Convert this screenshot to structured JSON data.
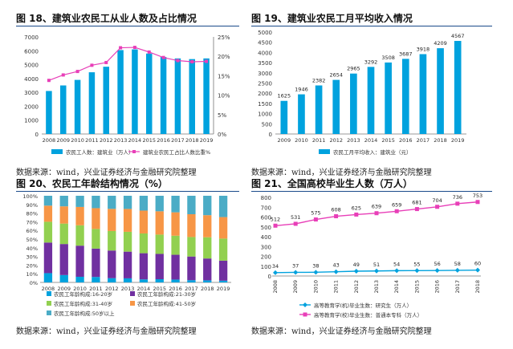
{
  "colors": {
    "blue": "#00A2DE",
    "magenta": "#E83FB8",
    "purple": "#7030A0",
    "green": "#92D050",
    "orange": "#F79646",
    "red": "#C0392B",
    "sky": "#4BACC6",
    "rule": "#1A4A8A"
  },
  "charts": [
    {
      "title": "图 18、建筑业农民工从业人数及占比情况",
      "source": "数据来源：wind，兴业证券经济与金融研究院整理",
      "chart_data": {
        "type": "bar+line",
        "categories": [
          "2008",
          "2009",
          "2010",
          "2011",
          "2012",
          "2013",
          "2014",
          "2015",
          "2016",
          "2017",
          "2018",
          "2019"
        ],
        "series": [
          {
            "name": "农民工人数：建筑业（万人）",
            "kind": "bar",
            "axis": "left",
            "values": [
              3100,
              3500,
              3900,
              4450,
              4850,
              6050,
              6100,
              5800,
              5550,
              5450,
              5400,
              5450
            ]
          },
          {
            "name": "建筑业农民工占比人数比重%",
            "kind": "line",
            "axis": "right",
            "values": [
              13.8,
              15.2,
              16.1,
              17.7,
              18.4,
              22.2,
              22.3,
              21.1,
              19.7,
              18.9,
              18.6,
              18.7
            ]
          }
        ],
        "left_ticks": [
          "0",
          "1000",
          "2000",
          "3000",
          "4000",
          "5000",
          "6000",
          "7000"
        ],
        "right_ticks": [
          "0%",
          "5%",
          "10%",
          "15%",
          "20%",
          "25%"
        ],
        "ylim": [
          0,
          7000
        ],
        "y2lim": [
          0,
          25
        ]
      }
    },
    {
      "title": "图 19、建筑业农民工月平均收入情况",
      "source": "数据来源：wind，兴业证券经济与金融研究院整理",
      "chart_data": {
        "type": "bar",
        "categories": [
          "2009",
          "2010",
          "2011",
          "2012",
          "2013",
          "2014",
          "2015",
          "2016",
          "2017",
          "2018",
          "2019"
        ],
        "values": [
          1625,
          1946,
          2382,
          2654,
          2965,
          3292,
          3508,
          3687,
          3918,
          4209,
          4567
        ],
        "data_labels": [
          "1625",
          "1946",
          "2382",
          "2654",
          "2965",
          "3292",
          "3508",
          "3687",
          "3918",
          "4209",
          "4567"
        ],
        "series_name": "农民工月平均收入：建筑业（元）",
        "left_ticks": [
          "0",
          "500",
          "1000",
          "1500",
          "2000",
          "2500",
          "3000",
          "3500",
          "4000",
          "4500",
          "5000"
        ],
        "ylim": [
          0,
          5000
        ]
      }
    },
    {
      "title": "图 20、农民工年龄结构情况（%）",
      "source": "数据来源：wind，兴业证券经济与金融研究院整理",
      "chart_data": {
        "type": "stacked-bar",
        "categories": [
          "2008",
          "2009",
          "2010",
          "2011",
          "2012",
          "2013",
          "2014",
          "2015",
          "2016",
          "2017",
          "2018",
          "2019"
        ],
        "series": [
          {
            "name": "农民工年龄构成:16-20岁",
            "values": [
              10.7,
              8.5,
              6.5,
              6.3,
              4.9,
              4.7,
              3.5,
              3.7,
              3.3,
              2.6,
              2.4,
              2.0
            ]
          },
          {
            "name": "农民工年龄构成:21-30岁",
            "values": [
              35.3,
              35.8,
              35.9,
              32.7,
              31.9,
              30.8,
              30.2,
              29.2,
              28.6,
              27.3,
              25.2,
              23.1
            ]
          },
          {
            "name": "农民工年龄构成:31-40岁",
            "values": [
              24.0,
              23.6,
              23.5,
              22.7,
              22.5,
              22.9,
              22.8,
              22.3,
              22.0,
              22.5,
              24.5,
              25.5
            ]
          },
          {
            "name": "农民工年龄构成:41-50岁",
            "values": [
              18.6,
              19.9,
              21.2,
              24.0,
              25.6,
              26.4,
              26.4,
              26.9,
              27.0,
              26.3,
              25.5,
              24.8
            ]
          },
          {
            "name": "农民工年龄构成:50岁以上",
            "values": [
              11.4,
              12.2,
              12.9,
              14.3,
              15.1,
              15.2,
              17.1,
              17.9,
              19.1,
              21.3,
              22.4,
              24.6
            ]
          }
        ],
        "left_ticks": [
          "0%",
          "10%",
          "20%",
          "30%",
          "40%",
          "50%",
          "60%",
          "70%",
          "80%",
          "90%",
          "100%"
        ],
        "ylim": [
          0,
          100
        ]
      }
    },
    {
      "title": "图 21、全国高校毕业生人数（万人）",
      "source": "数据来源：wind，兴业证券经济与金融研究院整理",
      "chart_data": {
        "type": "line",
        "categories": [
          "2008",
          "2009",
          "2010",
          "2011",
          "2012",
          "2013",
          "2014",
          "2015",
          "2016",
          "2017",
          "2018"
        ],
        "series": [
          {
            "name": "高等教育学(机)毕业生数：研究生（万人）",
            "values": [
              34,
              37,
              38,
              43,
              49,
              51,
              54,
              55,
              56,
              58,
              60
            ],
            "labels": [
              "34",
              "37",
              "38",
              "43",
              "49",
              "51",
              "54",
              "55",
              "56",
              "58",
              "60"
            ]
          },
          {
            "name": "高等教育学(校)毕业生数：普通本专科（万人）",
            "values": [
              512,
              531,
              575,
              608,
              625,
              639,
              659,
              681,
              704,
              736,
              753
            ],
            "labels": [
              "512",
              "531",
              "575",
              "608",
              "625",
              "639",
              "659",
              "681",
              "704",
              "736",
              "753"
            ]
          }
        ],
        "left_ticks": [
          "0",
          "100",
          "200",
          "300",
          "400",
          "500",
          "600",
          "700",
          "800"
        ],
        "ylim": [
          0,
          800
        ]
      }
    }
  ]
}
